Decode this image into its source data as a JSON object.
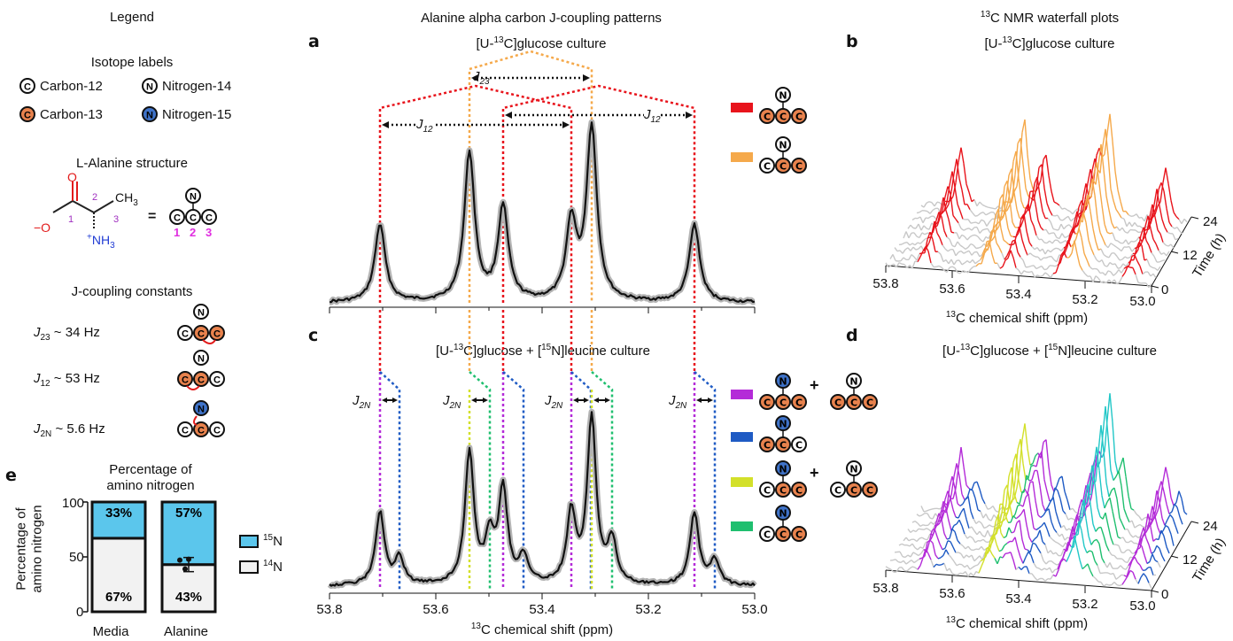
{
  "figure": {
    "panel_letters": {
      "a": "a",
      "b": "b",
      "c": "c",
      "d": "d",
      "e": "e"
    },
    "legend": {
      "title": "Legend",
      "isotope_title": "Isotope labels",
      "isotopes": {
        "c12": {
          "symbol": "C",
          "label": "Carbon-12",
          "color": "#ffffff"
        },
        "n14": {
          "symbol": "N",
          "label": "Nitrogen-14",
          "color": "#ffffff"
        },
        "c13": {
          "symbol": "C",
          "label": "Carbon-13",
          "color": "#e8824d"
        },
        "n15": {
          "symbol": "N",
          "label": "Nitrogen-15",
          "color": "#3f73c9"
        }
      },
      "structure_title": "L-Alanine structure",
      "structure": {
        "oxygen": "O",
        "ominus": "−O",
        "ch3": "CH",
        "ch3_sub": "3",
        "nh3": "NH",
        "nh3_sub": "3",
        "nh3_plus": "+",
        "num1": "1",
        "num2": "2",
        "num3": "3",
        "equals": "="
      },
      "jcoupling_title": "J-coupling constants",
      "jcoupling": [
        {
          "j": "J",
          "sub": "23",
          "value": "~ 34 Hz"
        },
        {
          "j": "J",
          "sub": "12",
          "value": "~ 53 Hz"
        },
        {
          "j": "J",
          "sub": "2N",
          "value": "~ 5.6 Hz"
        }
      ]
    },
    "panel_a": {
      "title": "Alanine alpha carbon J-coupling patterns",
      "subtitle_pre": "[U-",
      "subtitle_sup": "13",
      "subtitle_post": "C]glucose culture",
      "j23": "J",
      "j23_sub": "23",
      "j12": "J",
      "j12_sub": "12",
      "colors": {
        "red": "#e8141c",
        "orange": "#f5a94b"
      }
    },
    "panel_c": {
      "title_pre": "[U-",
      "title_sup1": "13",
      "title_mid": "C]glucose + [",
      "title_sup2": "15",
      "title_post": "N]leucine culture",
      "j2n": "J",
      "j2n_sub": "2N",
      "colors": {
        "purple": "#b42bd8",
        "blue": "#1f5bc4",
        "yellow": "#d3e02a",
        "green": "#1fbf6f"
      },
      "xlabel_sup": "13",
      "xlabel": "C chemical shift (ppm)",
      "ticks": [
        "53.8",
        "53.6",
        "53.4",
        "53.2",
        "53.0"
      ],
      "plus": "+"
    },
    "panel_b": {
      "title_sup": "13",
      "title": "C NMR waterfall plots",
      "subtitle_pre": "[U-",
      "subtitle_sup": "13",
      "subtitle_post": "C]glucose culture",
      "xticks": [
        "53.8",
        "53.6",
        "53.4",
        "53.2",
        "53.0"
      ],
      "xlabel_sup": "13",
      "xlabel": "C chemical shift (ppm)",
      "time_ticks": [
        "0",
        "12",
        "24"
      ],
      "time_label": "Time (h)"
    },
    "panel_d": {
      "title_pre": "[U-",
      "title_sup1": "13",
      "title_mid": "C]glucose + [",
      "title_sup2": "15",
      "title_post": "N]leucine culture",
      "xticks": [
        "53.8",
        "53.6",
        "53.4",
        "53.2",
        "53.0"
      ],
      "xlabel_sup": "13",
      "xlabel": "C chemical shift (ppm)",
      "time_ticks": [
        "0",
        "12",
        "24"
      ],
      "time_label": "Time (h)"
    },
    "panel_e": {
      "title_line1": "Percentage of",
      "title_line2": "amino nitrogen",
      "ylabel_line1": "Percentage of",
      "ylabel_line2": "amino nitrogen",
      "yticks": [
        "0",
        "50",
        "100"
      ],
      "categories": [
        "Media",
        "Alanine"
      ],
      "legend": [
        {
          "sup": "15",
          "label": "N",
          "color": "#5bc6ec"
        },
        {
          "sup": "14",
          "label": "N",
          "color": "#f2f2f2"
        }
      ]
    }
  },
  "chart_data": {
    "type": "bar",
    "title": "Percentage of amino nitrogen",
    "ylabel": "Percentage of amino nitrogen",
    "categories": [
      "Media",
      "Alanine"
    ],
    "ylim": [
      0,
      100
    ],
    "stacked": true,
    "series": [
      {
        "name": "14N",
        "values": [
          67,
          43
        ],
        "labels": [
          "67%",
          "43%"
        ],
        "color": "#f2f2f2"
      },
      {
        "name": "15N",
        "values": [
          33,
          57
        ],
        "labels": [
          "33%",
          "57%"
        ],
        "color": "#5bc6ec"
      }
    ]
  }
}
